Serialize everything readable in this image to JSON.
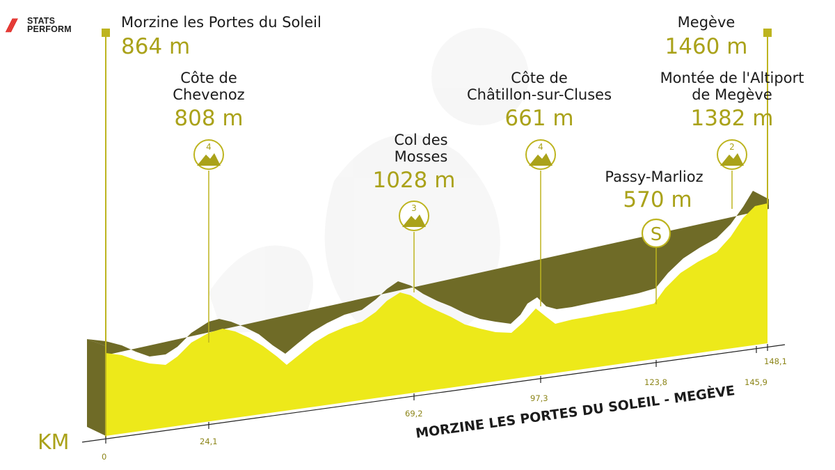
{
  "brand": {
    "logo_line1": "STATS",
    "logo_line2": "PERFORM"
  },
  "route_title": "MORZINE LES PORTES DU SOLEIL - MEGÈVE",
  "axis_label": "KM",
  "colors": {
    "fill": "#ede91a",
    "side": "#6f6b27",
    "accent": "#aaa21a",
    "line": "#bdb41f"
  },
  "chart_data": {
    "type": "area",
    "title": "MORZINE LES PORTES DU SOLEIL - MEGÈVE",
    "xlabel": "KM",
    "x_ticks": [
      "0",
      "24,1",
      "69,2",
      "97,3",
      "123,8",
      "145,9",
      "148,1"
    ],
    "x_range": [
      0,
      148.1
    ],
    "points": [
      {
        "name": "Morzine les Portes du Soleil",
        "altitude": "864 m",
        "km": 0,
        "type": "start"
      },
      {
        "name": "Côte de Chevenoz",
        "altitude": "808 m",
        "km": 24.1,
        "category": "4"
      },
      {
        "name": "Col des Mosses",
        "altitude": "1028 m",
        "km": 69.2,
        "category": "3"
      },
      {
        "name": "Côte de Châtillon-sur-Cluses",
        "altitude": "661 m",
        "km": 97.3,
        "category": "4"
      },
      {
        "name": "Passy-Marlioz",
        "altitude": "570 m",
        "km": 123.8,
        "category": "S"
      },
      {
        "name": "Montée de l'Altiport de Megève",
        "altitude": "1382 m",
        "km": 145.9,
        "category": "2"
      },
      {
        "name": "Megève",
        "altitude": "1460 m",
        "km": 148.1,
        "type": "finish"
      }
    ]
  },
  "labels": {
    "start_name": "Morzine les Portes du Soleil",
    "start_alt": "864 m",
    "finish_name": "Megève",
    "finish_alt": "1460 m",
    "chevenoz_l1": "Côte de",
    "chevenoz_l2": "Chevenoz",
    "chevenoz_alt": "808 m",
    "chevenoz_cat": "4",
    "mosses_l1": "Col des",
    "mosses_l2": "Mosses",
    "mosses_alt": "1028 m",
    "mosses_cat": "3",
    "chatillon_l1": "Côte de",
    "chatillon_l2": "Châtillon-sur-Cluses",
    "chatillon_alt": "661 m",
    "chatillon_cat": "4",
    "passy_name": "Passy-Marlioz",
    "passy_alt": "570 m",
    "passy_cat": "S",
    "altiport_l1": "Montée de l'Altiport",
    "altiport_l2": "de Megève",
    "altiport_alt": "1382 m",
    "altiport_cat": "2"
  }
}
